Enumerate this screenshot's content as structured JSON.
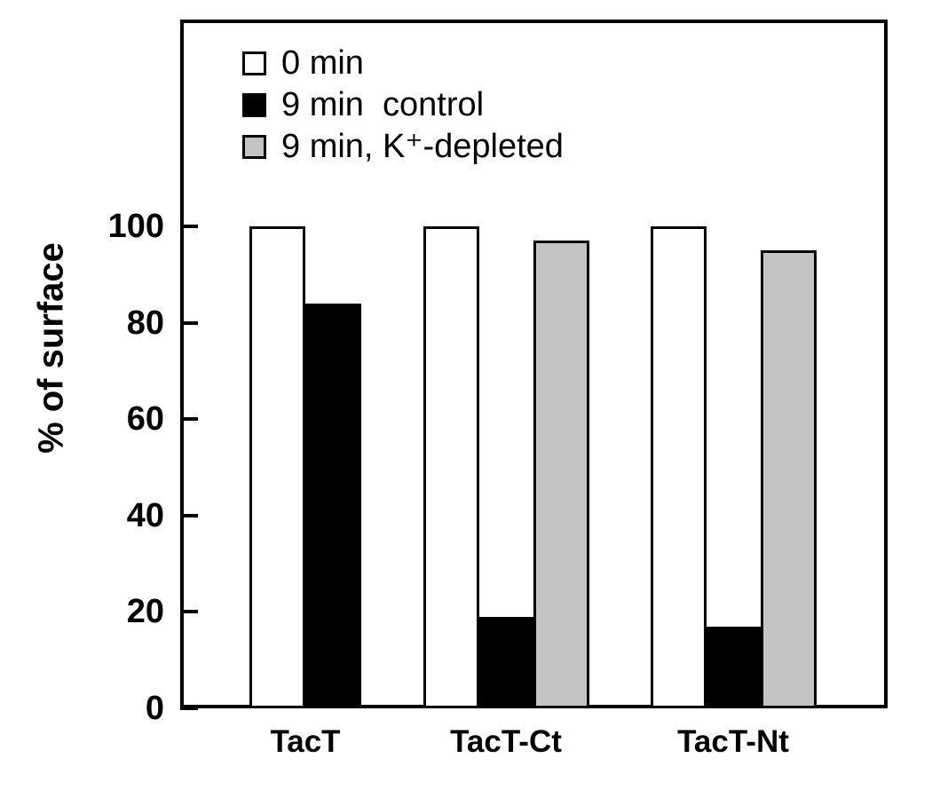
{
  "chart_data": {
    "type": "bar",
    "title": "",
    "xlabel": "",
    "ylabel": "% of surface",
    "ylim": [
      0,
      100
    ],
    "yticks": [
      0,
      20,
      40,
      60,
      80,
      100
    ],
    "grid": false,
    "legend_position": "top-left-inside",
    "frame": true,
    "categories": [
      "TacT",
      "TacT-Ct",
      "TacT-Nt"
    ],
    "series": [
      {
        "name": "0 min",
        "color": "#ffffff",
        "values": [
          100,
          100,
          100
        ]
      },
      {
        "name": "9 min  control",
        "color": "#000000",
        "values": [
          84,
          19,
          17
        ]
      },
      {
        "name": "9 min, K⁺-depleted",
        "color": "#c4c4c4",
        "values": [
          null,
          97,
          95
        ]
      }
    ],
    "bar_border_color": "#000000",
    "axis_color": "#000000"
  }
}
